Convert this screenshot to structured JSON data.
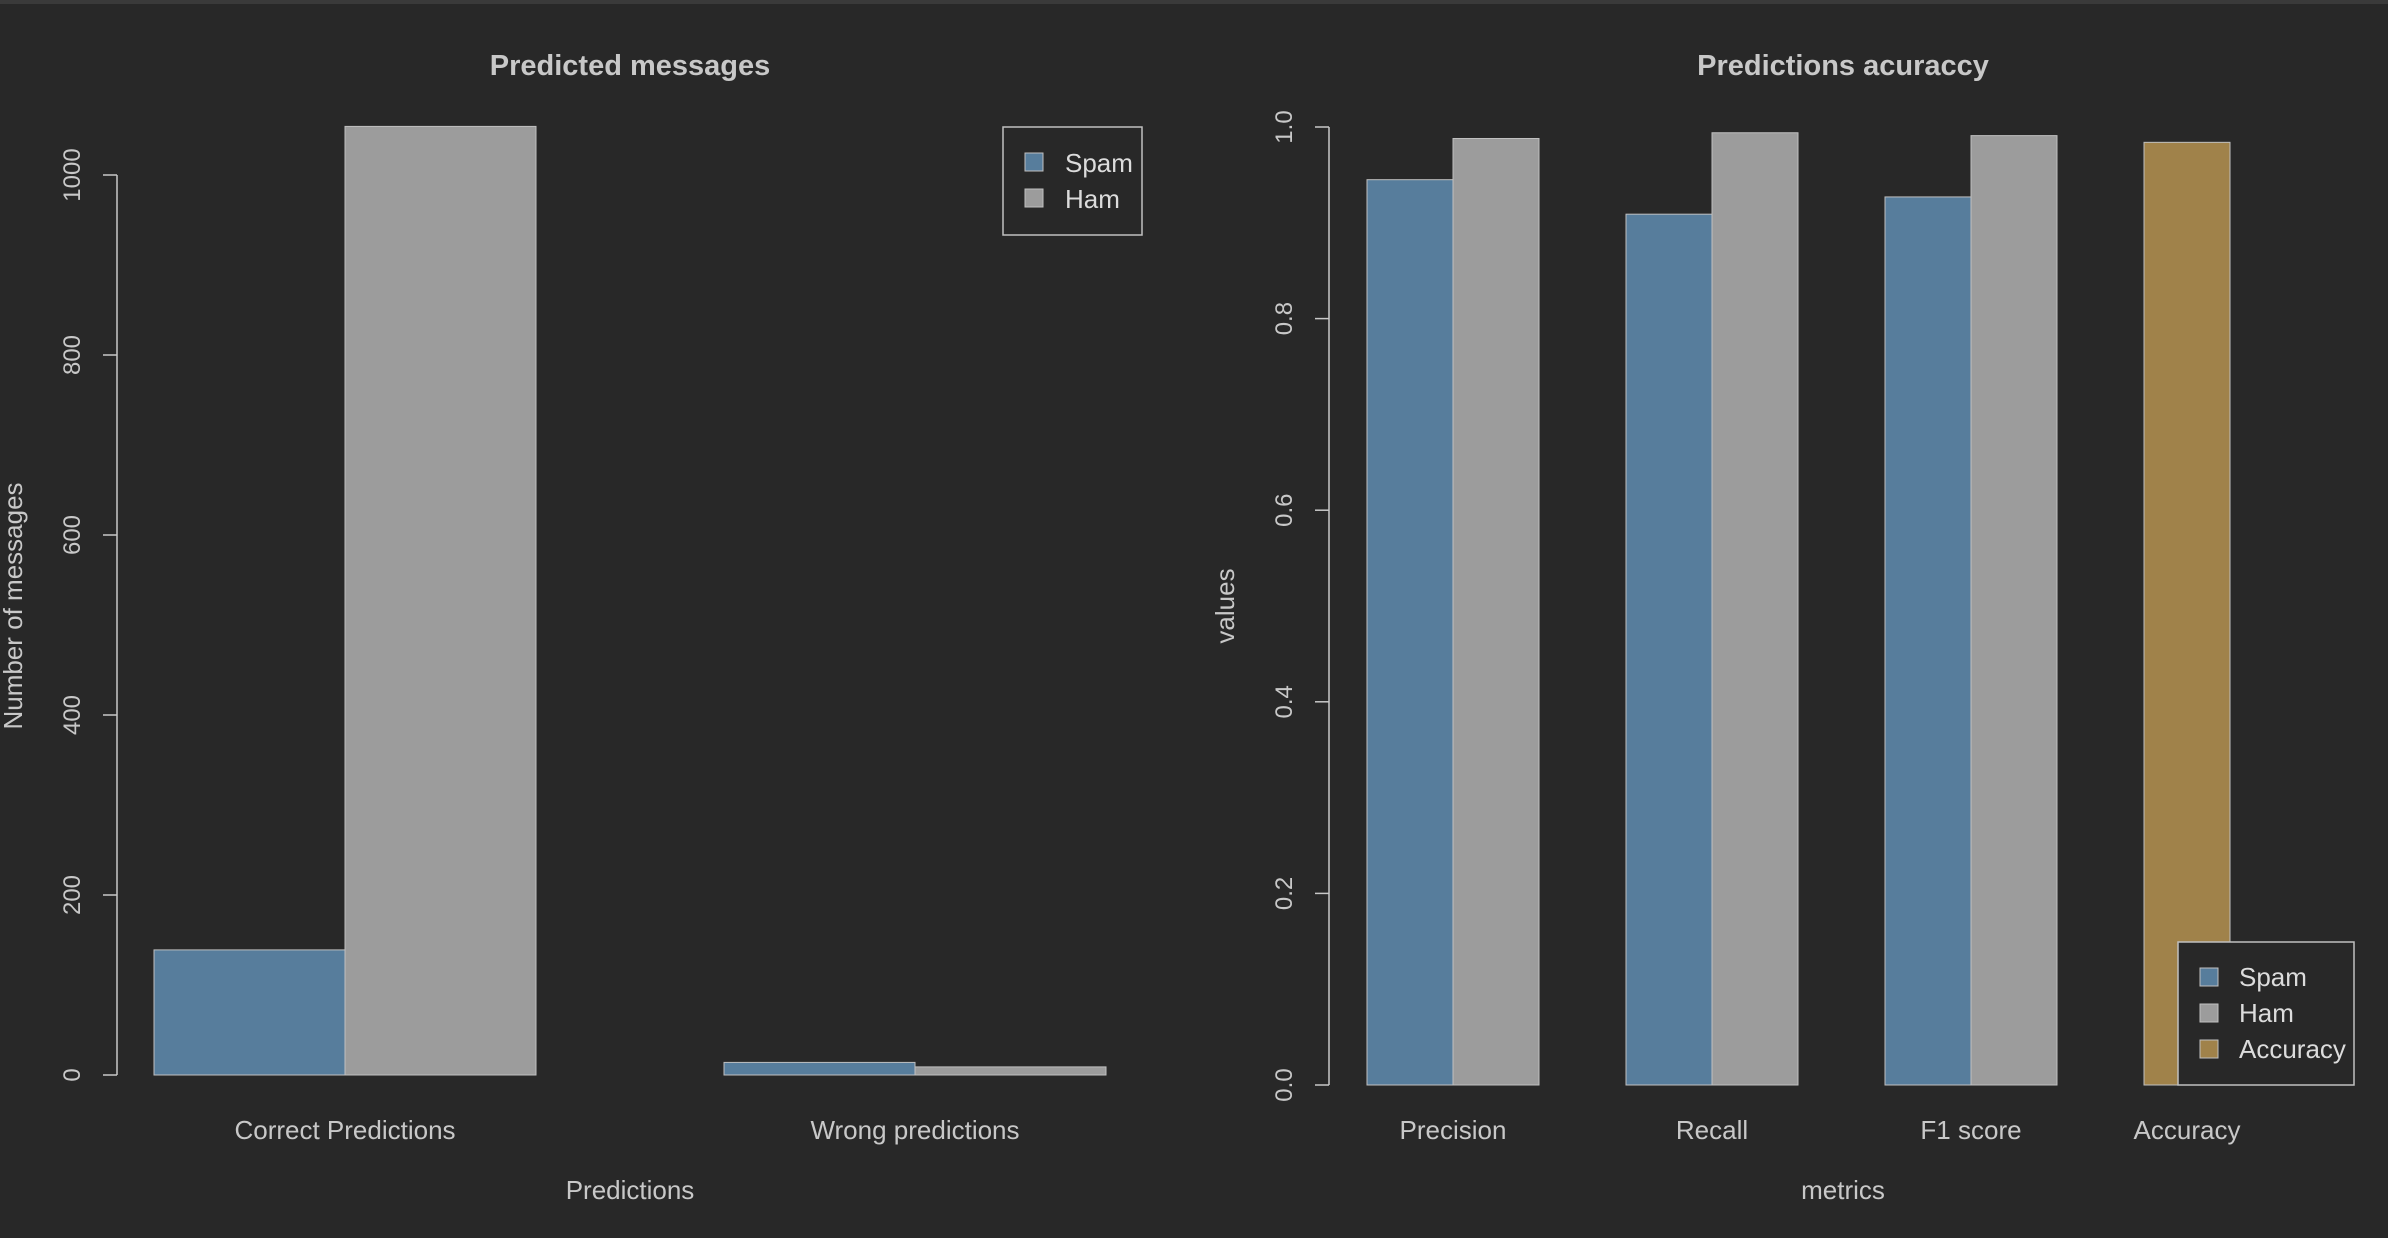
{
  "colors": {
    "background": "#282828",
    "spam": "#577d9c",
    "ham": "#9c9c9c",
    "accuracy": "#a0824a",
    "axis": "#c8c8c8",
    "text": "#c8c8c8",
    "bar_border": "#c0c0c0"
  },
  "chart_data": [
    {
      "type": "bar",
      "title": "Predicted messages",
      "xlabel": "Predictions",
      "ylabel": "Number of messages",
      "categories": [
        "Correct Predictions",
        "Wrong predictions"
      ],
      "ylim": [
        0,
        1000
      ],
      "yticks": [
        "0",
        "200",
        "400",
        "600",
        "800",
        "1000"
      ],
      "grid": false,
      "legend_position": "top-right",
      "series": [
        {
          "name": "Spam",
          "values": [
            139,
            14
          ]
        },
        {
          "name": "Ham",
          "values": [
            1054,
            9
          ]
        }
      ]
    },
    {
      "type": "bar",
      "title": "Predictions acuraccy",
      "xlabel": "metrics",
      "ylabel": "values",
      "categories": [
        "Precision",
        "Recall",
        "F1 score",
        "Accuracy"
      ],
      "ylim": [
        0,
        1
      ],
      "yticks": [
        "0.0",
        "0.2",
        "0.4",
        "0.6",
        "0.8",
        "1.0"
      ],
      "grid": false,
      "legend_position": "bottom-right",
      "series": [
        {
          "name": "Spam",
          "values": [
            0.945,
            0.909,
            0.927,
            null
          ]
        },
        {
          "name": "Ham",
          "values": [
            0.988,
            0.994,
            0.991,
            null
          ]
        },
        {
          "name": "Accuracy",
          "values": [
            null,
            null,
            null,
            0.984
          ]
        }
      ]
    }
  ]
}
